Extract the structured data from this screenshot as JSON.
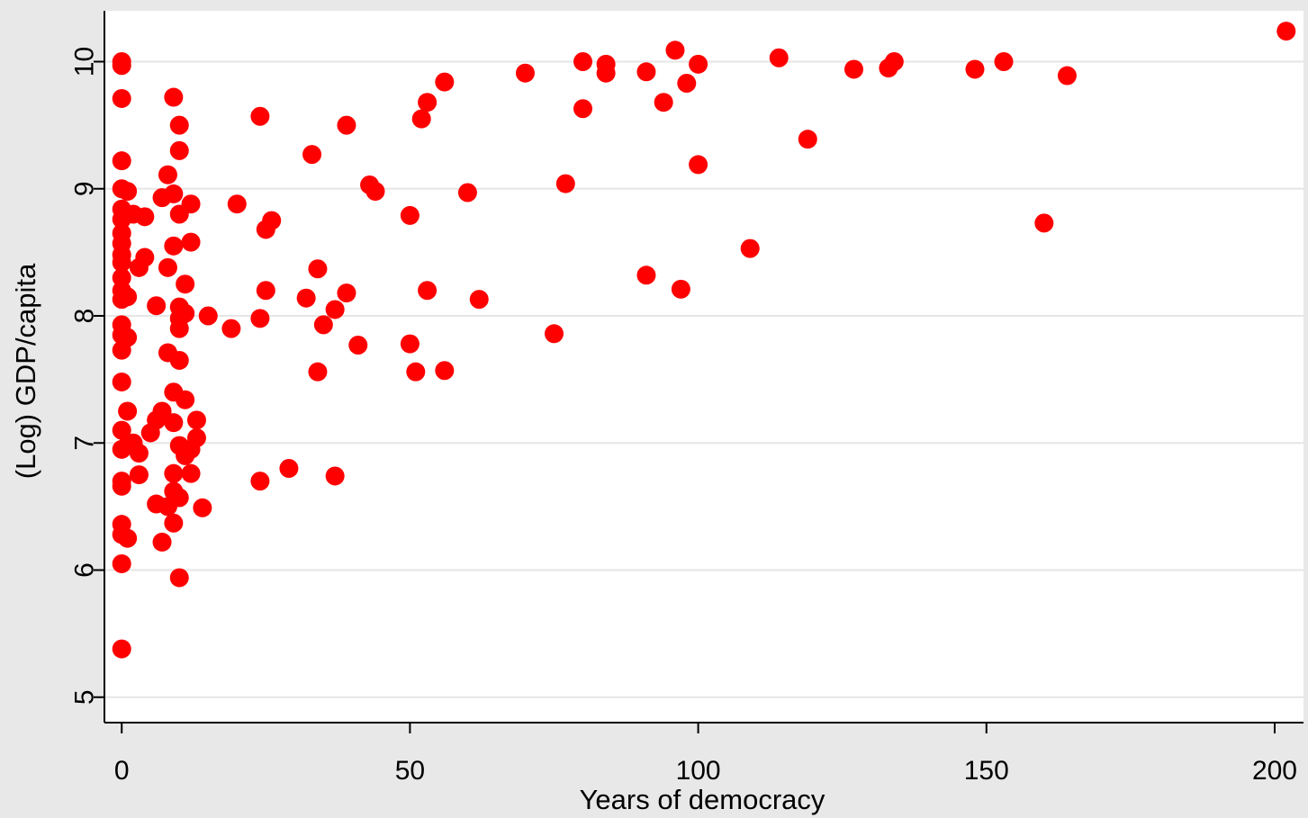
{
  "chart_data": {
    "type": "scatter",
    "title": "",
    "xlabel": "Years of democracy",
    "ylabel": "(Log) GDP/capita",
    "xlim": [
      -3,
      205
    ],
    "ylim": [
      4.8,
      10.4
    ],
    "x_ticks": [
      0,
      50,
      100,
      150,
      200
    ],
    "x_tick_labels": [
      "0",
      "50",
      "100",
      "150",
      "200"
    ],
    "y_ticks": [
      5,
      6,
      7,
      8,
      9,
      10
    ],
    "y_tick_labels": [
      "5",
      "6",
      "7",
      "8",
      "9",
      "10"
    ],
    "grid": "horizontal",
    "legend": "none",
    "marker_color": "#ff0000",
    "plot_background": "#ffffff",
    "figure_background": "#e8e8e8",
    "series": [
      {
        "points": [
          [
            0,
            10.0
          ],
          [
            0,
            9.97
          ],
          [
            0,
            9.71
          ],
          [
            0,
            9.22
          ],
          [
            0,
            9.0
          ],
          [
            1,
            8.98
          ],
          [
            0,
            8.84
          ],
          [
            0,
            8.76
          ],
          [
            2,
            8.8
          ],
          [
            4,
            8.78
          ],
          [
            0,
            8.65
          ],
          [
            0,
            8.57
          ],
          [
            0,
            8.48
          ],
          [
            0,
            8.42
          ],
          [
            4,
            8.46
          ],
          [
            3,
            8.38
          ],
          [
            0,
            8.3
          ],
          [
            0,
            8.2
          ],
          [
            1,
            8.15
          ],
          [
            0,
            8.13
          ],
          [
            0,
            7.93
          ],
          [
            0,
            7.85
          ],
          [
            1,
            7.83
          ],
          [
            0,
            7.73
          ],
          [
            0,
            7.48
          ],
          [
            1,
            7.25
          ],
          [
            0,
            7.1
          ],
          [
            2,
            7.0
          ],
          [
            0,
            6.95
          ],
          [
            1,
            6.98
          ],
          [
            3,
            6.92
          ],
          [
            3,
            6.75
          ],
          [
            0,
            6.7
          ],
          [
            0,
            6.66
          ],
          [
            0,
            6.36
          ],
          [
            0,
            6.28
          ],
          [
            1,
            6.25
          ],
          [
            0,
            6.05
          ],
          [
            0,
            5.38
          ],
          [
            9,
            9.72
          ],
          [
            10,
            9.5
          ],
          [
            10,
            9.3
          ],
          [
            8,
            9.11
          ],
          [
            7,
            8.93
          ],
          [
            9,
            8.96
          ],
          [
            12,
            8.88
          ],
          [
            10,
            8.8
          ],
          [
            9,
            8.55
          ],
          [
            12,
            8.58
          ],
          [
            8,
            8.38
          ],
          [
            11,
            8.25
          ],
          [
            6,
            8.08
          ],
          [
            10,
            8.07
          ],
          [
            11,
            8.02
          ],
          [
            10,
            7.98
          ],
          [
            10,
            7.9
          ],
          [
            15,
            8.0
          ],
          [
            8,
            7.71
          ],
          [
            10,
            7.65
          ],
          [
            9,
            7.4
          ],
          [
            11,
            7.34
          ],
          [
            7,
            7.25
          ],
          [
            6,
            7.18
          ],
          [
            9,
            7.16
          ],
          [
            5,
            7.08
          ],
          [
            13,
            7.18
          ],
          [
            13,
            7.04
          ],
          [
            10,
            6.98
          ],
          [
            12,
            6.95
          ],
          [
            11,
            6.9
          ],
          [
            9,
            6.76
          ],
          [
            12,
            6.76
          ],
          [
            9,
            6.62
          ],
          [
            10,
            6.57
          ],
          [
            6,
            6.52
          ],
          [
            8,
            6.5
          ],
          [
            14,
            6.49
          ],
          [
            9,
            6.37
          ],
          [
            7,
            6.22
          ],
          [
            10,
            5.94
          ],
          [
            24,
            9.57
          ],
          [
            20,
            8.88
          ],
          [
            25,
            8.68
          ],
          [
            26,
            8.75
          ],
          [
            25,
            8.2
          ],
          [
            24,
            7.98
          ],
          [
            19,
            7.9
          ],
          [
            24,
            6.7
          ],
          [
            29,
            6.8
          ],
          [
            33,
            9.27
          ],
          [
            39,
            9.5
          ],
          [
            34,
            8.37
          ],
          [
            32,
            8.14
          ],
          [
            39,
            8.18
          ],
          [
            37,
            8.05
          ],
          [
            35,
            7.93
          ],
          [
            41,
            7.77
          ],
          [
            34,
            7.56
          ],
          [
            37,
            6.74
          ],
          [
            43,
            9.03
          ],
          [
            44,
            8.98
          ],
          [
            50,
            8.79
          ],
          [
            50,
            7.78
          ],
          [
            51,
            7.56
          ],
          [
            56,
            9.84
          ],
          [
            53,
            9.68
          ],
          [
            52,
            9.55
          ],
          [
            53,
            8.2
          ],
          [
            56,
            7.57
          ],
          [
            60,
            8.97
          ],
          [
            62,
            8.13
          ],
          [
            70,
            9.91
          ],
          [
            75,
            7.86
          ],
          [
            77,
            9.04
          ],
          [
            80,
            10.0
          ],
          [
            80,
            9.63
          ],
          [
            84,
            9.98
          ],
          [
            84,
            9.91
          ],
          [
            91,
            9.92
          ],
          [
            91,
            8.32
          ],
          [
            94,
            9.68
          ],
          [
            96,
            10.09
          ],
          [
            97,
            8.21
          ],
          [
            98,
            9.83
          ],
          [
            100,
            9.98
          ],
          [
            100,
            9.19
          ],
          [
            109,
            8.53
          ],
          [
            114,
            10.03
          ],
          [
            119,
            9.39
          ],
          [
            127,
            9.94
          ],
          [
            133,
            9.95
          ],
          [
            134,
            10.0
          ],
          [
            148,
            9.94
          ],
          [
            153,
            10.0
          ],
          [
            160,
            8.73
          ],
          [
            164,
            9.89
          ],
          [
            202,
            10.24
          ]
        ]
      }
    ]
  }
}
